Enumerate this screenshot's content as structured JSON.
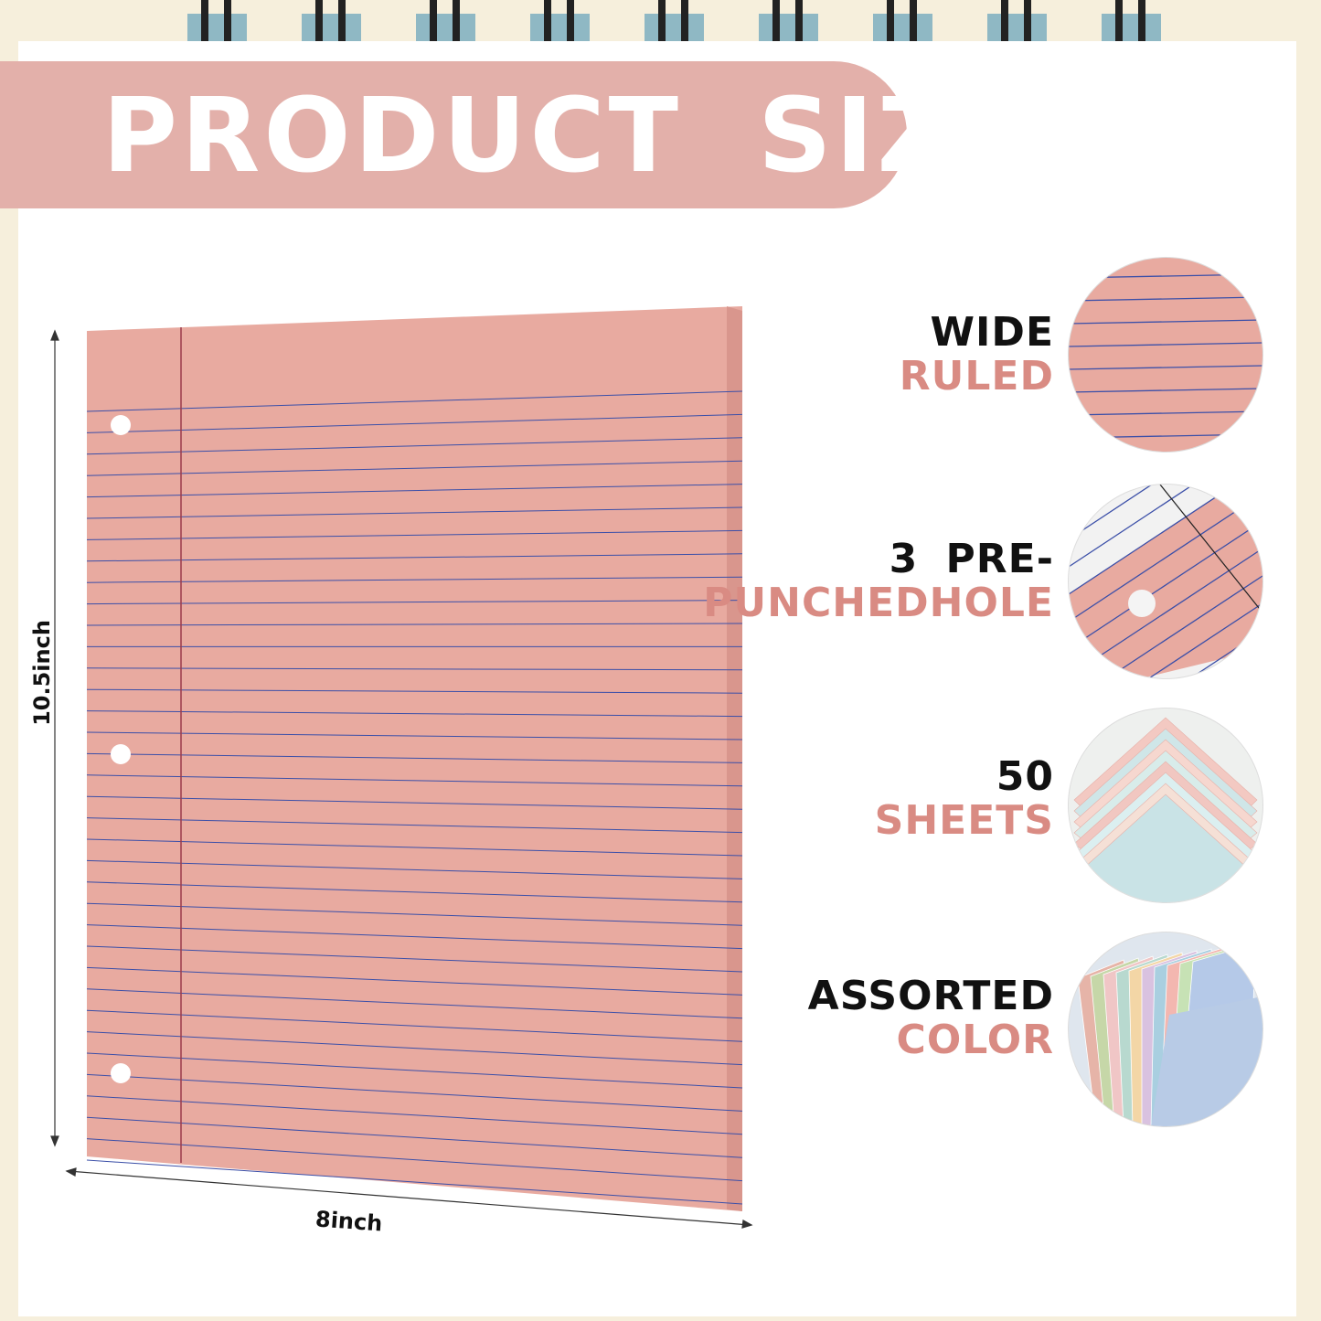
{
  "banner": {
    "title": "PRODUCT SIZE",
    "color": "#e3b0aa"
  },
  "paper": {
    "color": "#e8aaa0",
    "line_color": "#3b4fa8",
    "margin_color": "#9b3b4a",
    "holes": 3
  },
  "dimensions": {
    "height_label": "10.5inch",
    "width_label": "8inch"
  },
  "features": [
    {
      "line1": "WIDE",
      "line2": "RULED",
      "icon": "ruled-lines-closeup"
    },
    {
      "line1": "3 PRE-",
      "line2": "PUNCHEDHOLE",
      "icon": "punched-hole-closeup"
    },
    {
      "line1": "50",
      "line2": "SHEETS",
      "icon": "paper-stack-closeup"
    },
    {
      "line1": "ASSORTED",
      "line2": "COLOR",
      "icon": "assorted-colors-fan"
    }
  ],
  "colors": {
    "accent": "#d98b83",
    "background": "#f6efdc"
  }
}
